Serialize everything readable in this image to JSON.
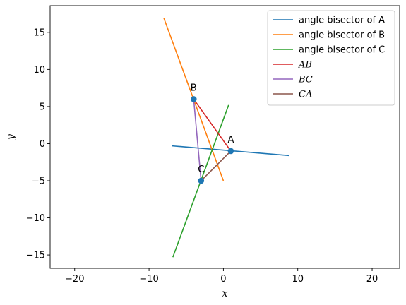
{
  "chart_data": {
    "type": "line",
    "title": "",
    "xlabel": "x",
    "ylabel": "y",
    "xlim": [
      -23.3,
      23.7
    ],
    "ylim": [
      -16.8,
      18.6
    ],
    "xticks": [
      -20,
      -10,
      0,
      10,
      20
    ],
    "yticks": [
      -15,
      -10,
      -5,
      0,
      5,
      10,
      15
    ],
    "x_tick_labels": [
      "−20",
      "−10",
      "0",
      "10",
      "20"
    ],
    "y_tick_labels": [
      "−15",
      "−10",
      "−5",
      "0",
      "5",
      "10",
      "15"
    ],
    "grid": false,
    "legend_position": "top-right",
    "series": [
      {
        "name": "angle bisector of A",
        "color": "#1f77b4",
        "x": [
          -6.9,
          8.8
        ],
        "y": [
          -0.3,
          -1.6
        ]
      },
      {
        "name": "angle bisector of B",
        "color": "#ff7f0e",
        "x": [
          -8.0,
          0.0
        ],
        "y": [
          16.9,
          -5.0
        ]
      },
      {
        "name": "angle bisector of C",
        "color": "#2ca02c",
        "x": [
          -6.8,
          0.7
        ],
        "y": [
          -15.3,
          5.2
        ]
      },
      {
        "name": "AB",
        "color": "#d62728",
        "x": [
          1.0,
          -4.0
        ],
        "y": [
          -1.0,
          6.0
        ]
      },
      {
        "name": "BC",
        "color": "#9467bd",
        "x": [
          -4.0,
          -3.0
        ],
        "y": [
          6.0,
          -5.0
        ]
      },
      {
        "name": "CA",
        "color": "#8c564b",
        "x": [
          -3.0,
          1.0
        ],
        "y": [
          -5.0,
          -1.0
        ]
      }
    ],
    "points": [
      {
        "label": "A",
        "x": 1.0,
        "y": -1.0
      },
      {
        "label": "B",
        "x": -4.0,
        "y": 6.0
      },
      {
        "label": "C",
        "x": -3.0,
        "y": -5.0
      }
    ],
    "point_color": "#1f77b4"
  }
}
